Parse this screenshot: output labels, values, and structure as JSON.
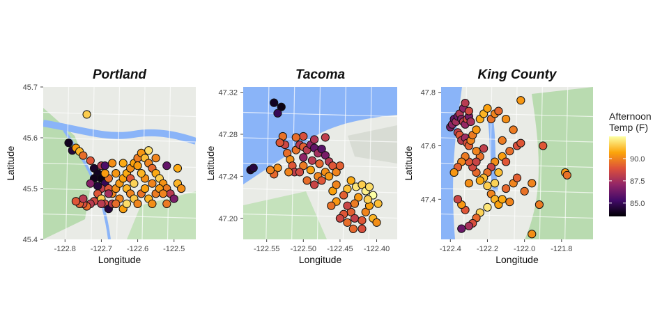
{
  "legend": {
    "title_line1": "Afternoon",
    "title_line2": "Temp (F)",
    "ticks": [
      90.0,
      87.5,
      85.0
    ],
    "tick_labels": [
      "90.0",
      "87.5",
      "85.0"
    ],
    "range": [
      83.5,
      92.5
    ],
    "colormap": [
      "#000004",
      "#420a68",
      "#932667",
      "#dd513a",
      "#fca50a",
      "#fcffa4"
    ]
  },
  "chart_data": [
    {
      "type": "scatter",
      "title": "Portland",
      "xlabel": "Longitude",
      "ylabel": "Latitude",
      "xlim": [
        -122.86,
        -122.44
      ],
      "ylim": [
        45.4,
        45.7
      ],
      "xticks": [
        -122.8,
        -122.7,
        -122.6,
        -122.5
      ],
      "xtick_labels": [
        "-122.8",
        "-122.7",
        "-122.6",
        "-122.5"
      ],
      "yticks": [
        45.4,
        45.5,
        45.6,
        45.7
      ],
      "ytick_labels": [
        "45.4",
        "45.5",
        "45.6",
        "45.7"
      ],
      "color_variable": "Afternoon Temp (F)",
      "points": [
        [
          -122.79,
          45.59,
          84.0
        ],
        [
          -122.78,
          45.575,
          84.5
        ],
        [
          -122.77,
          45.58,
          90.5
        ],
        [
          -122.76,
          45.573,
          91.0
        ],
        [
          -122.75,
          45.565,
          89.5
        ],
        [
          -122.74,
          45.646,
          91.5
        ],
        [
          -122.73,
          45.555,
          89.0
        ],
        [
          -122.72,
          45.54,
          84.2
        ],
        [
          -122.71,
          45.53,
          84.0
        ],
        [
          -122.7,
          45.52,
          83.8
        ],
        [
          -122.69,
          45.51,
          85.0
        ],
        [
          -122.7,
          45.5,
          88.2
        ],
        [
          -122.71,
          45.49,
          89.0
        ],
        [
          -122.72,
          45.475,
          88.5
        ],
        [
          -122.73,
          45.47,
          88.0
        ],
        [
          -122.74,
          45.465,
          89.5
        ],
        [
          -122.75,
          45.47,
          88.8
        ],
        [
          -122.76,
          45.47,
          89.2
        ],
        [
          -122.7,
          45.48,
          91.5
        ],
        [
          -122.69,
          45.47,
          88.6
        ],
        [
          -122.68,
          45.46,
          84.5
        ],
        [
          -122.67,
          45.47,
          88.0
        ],
        [
          -122.67,
          45.49,
          90.0
        ],
        [
          -122.68,
          45.5,
          89.0
        ],
        [
          -122.68,
          45.52,
          89.6
        ],
        [
          -122.69,
          45.53,
          90.5
        ],
        [
          -122.7,
          45.545,
          88.0
        ],
        [
          -122.66,
          45.5,
          90.2
        ],
        [
          -122.65,
          45.51,
          90.4
        ],
        [
          -122.64,
          45.52,
          90.6
        ],
        [
          -122.63,
          45.53,
          90.8
        ],
        [
          -122.62,
          45.54,
          90.2
        ],
        [
          -122.61,
          45.55,
          90.6
        ],
        [
          -122.6,
          45.56,
          89.8
        ],
        [
          -122.59,
          45.57,
          90.4
        ],
        [
          -122.58,
          45.56,
          91.2
        ],
        [
          -122.57,
          45.55,
          90.0
        ],
        [
          -122.56,
          45.54,
          89.4
        ],
        [
          -122.55,
          45.53,
          90.8
        ],
        [
          -122.54,
          45.52,
          91.5
        ],
        [
          -122.53,
          45.51,
          90.3
        ],
        [
          -122.52,
          45.5,
          89.8
        ],
        [
          -122.51,
          45.49,
          88.0
        ],
        [
          -122.5,
          45.48,
          86.5
        ],
        [
          -122.49,
          45.51,
          91.0
        ],
        [
          -122.48,
          45.5,
          90.2
        ],
        [
          -122.49,
          45.54,
          90.8
        ],
        [
          -122.55,
          45.56,
          90.0
        ],
        [
          -122.57,
          45.575,
          91.8
        ],
        [
          -122.6,
          45.545,
          90.5
        ],
        [
          -122.63,
          45.5,
          91.0
        ],
        [
          -122.62,
          45.49,
          90.0
        ],
        [
          -122.61,
          45.48,
          91.4
        ],
        [
          -122.6,
          45.47,
          90.0
        ],
        [
          -122.59,
          45.49,
          89.6
        ],
        [
          -122.58,
          45.5,
          90.6
        ],
        [
          -122.57,
          45.48,
          91.0
        ],
        [
          -122.56,
          45.47,
          90.2
        ],
        [
          -122.55,
          45.49,
          89.8
        ],
        [
          -122.54,
          45.5,
          90.4
        ],
        [
          -122.53,
          45.49,
          90.0
        ],
        [
          -122.52,
          45.47,
          89.8
        ],
        [
          -122.64,
          45.46,
          90.6
        ],
        [
          -122.65,
          45.48,
          90.0
        ],
        [
          -122.66,
          45.53,
          90.4
        ],
        [
          -122.62,
          45.52,
          89.0
        ],
        [
          -122.58,
          45.52,
          90.2
        ],
        [
          -122.61,
          45.51,
          91.6
        ],
        [
          -122.56,
          45.51,
          90.0
        ],
        [
          -122.64,
          45.55,
          90.8
        ],
        [
          -122.67,
          45.55,
          90.2
        ],
        [
          -122.52,
          45.545,
          86.0
        ],
        [
          -122.71,
          45.505,
          84.5
        ],
        [
          -122.72,
          45.52,
          83.9
        ],
        [
          -122.73,
          45.51,
          86.8
        ],
        [
          -122.69,
          45.545,
          85.5
        ],
        [
          -122.75,
          45.48,
          88.0
        ],
        [
          -122.66,
          45.47,
          89.5
        ],
        [
          -122.63,
          45.47,
          91.8
        ],
        [
          -122.59,
          45.53,
          91.0
        ],
        [
          -122.68,
          45.49,
          87.5
        ],
        [
          -122.7,
          45.47,
          88.0
        ],
        [
          -122.77,
          45.475,
          89.0
        ]
      ]
    },
    {
      "type": "scatter",
      "title": "Tacoma",
      "xlabel": "Longitude",
      "ylabel": "Latitude",
      "xlim": [
        -122.582,
        -122.372
      ],
      "ylim": [
        47.18,
        47.325
      ],
      "xticks": [
        -122.55,
        -122.5,
        -122.45,
        -122.4
      ],
      "xtick_labels": [
        "-122.55",
        "-122.50",
        "-122.45",
        "-122.40"
      ],
      "yticks": [
        47.2,
        47.24,
        47.28,
        47.32
      ],
      "ytick_labels": [
        "47.20",
        "47.24",
        "47.28",
        "47.32"
      ],
      "color_variable": "Afternoon Temp (F)",
      "points": [
        [
          -122.54,
          47.31,
          84.0
        ],
        [
          -122.53,
          47.306,
          83.8
        ],
        [
          -122.535,
          47.3,
          85.0
        ],
        [
          -122.572,
          47.246,
          84.2
        ],
        [
          -122.568,
          47.248,
          84.6
        ],
        [
          -122.525,
          47.27,
          88.5
        ],
        [
          -122.522,
          47.262,
          89.5
        ],
        [
          -122.518,
          47.256,
          90.2
        ],
        [
          -122.515,
          47.25,
          89.0
        ],
        [
          -122.512,
          47.244,
          88.2
        ],
        [
          -122.51,
          47.265,
          89.6
        ],
        [
          -122.505,
          47.27,
          88.0
        ],
        [
          -122.5,
          47.268,
          89.2
        ],
        [
          -122.495,
          47.265,
          88.0
        ],
        [
          -122.49,
          47.27,
          87.0
        ],
        [
          -122.485,
          47.267,
          86.0
        ],
        [
          -122.48,
          47.262,
          87.5
        ],
        [
          -122.475,
          47.266,
          85.8
        ],
        [
          -122.47,
          47.26,
          86.5
        ],
        [
          -122.465,
          47.254,
          88.0
        ],
        [
          -122.46,
          47.25,
          89.0
        ],
        [
          -122.47,
          47.244,
          90.2
        ],
        [
          -122.48,
          47.24,
          90.0
        ],
        [
          -122.49,
          47.246,
          90.6
        ],
        [
          -122.5,
          47.25,
          89.8
        ],
        [
          -122.505,
          47.244,
          88.6
        ],
        [
          -122.495,
          47.236,
          89.5
        ],
        [
          -122.485,
          47.232,
          88.4
        ],
        [
          -122.475,
          47.236,
          89.0
        ],
        [
          -122.465,
          47.24,
          90.4
        ],
        [
          -122.455,
          47.244,
          90.0
        ],
        [
          -122.45,
          47.25,
          89.2
        ],
        [
          -122.52,
          47.244,
          90.0
        ],
        [
          -122.535,
          47.248,
          90.2
        ],
        [
          -122.54,
          47.242,
          89.4
        ],
        [
          -122.545,
          47.246,
          90.0
        ],
        [
          -122.528,
          47.278,
          89.6
        ],
        [
          -122.532,
          47.272,
          89.0
        ],
        [
          -122.5,
          47.258,
          87.0
        ],
        [
          -122.488,
          47.255,
          88.0
        ],
        [
          -122.478,
          47.252,
          89.4
        ],
        [
          -122.46,
          47.226,
          90.6
        ],
        [
          -122.455,
          47.232,
          90.0
        ],
        [
          -122.44,
          47.228,
          91.2
        ],
        [
          -122.435,
          47.236,
          90.8
        ],
        [
          -122.428,
          47.23,
          92.0
        ],
        [
          -122.42,
          47.232,
          91.5
        ],
        [
          -122.415,
          47.226,
          92.2
        ],
        [
          -122.41,
          47.23,
          91.8
        ],
        [
          -122.405,
          47.222,
          92.5
        ],
        [
          -122.425,
          47.22,
          90.4
        ],
        [
          -122.43,
          47.214,
          89.8
        ],
        [
          -122.435,
          47.206,
          89.2
        ],
        [
          -122.44,
          47.212,
          88.4
        ],
        [
          -122.445,
          47.204,
          89.0
        ],
        [
          -122.45,
          47.2,
          88.5
        ],
        [
          -122.44,
          47.196,
          89.5
        ],
        [
          -122.43,
          47.2,
          88.2
        ],
        [
          -122.42,
          47.198,
          89.0
        ],
        [
          -122.415,
          47.206,
          90.0
        ],
        [
          -122.41,
          47.212,
          90.6
        ],
        [
          -122.405,
          47.2,
          91.0
        ],
        [
          -122.4,
          47.196,
          90.2
        ],
        [
          -122.42,
          47.19,
          88.8
        ],
        [
          -122.432,
          47.19,
          89.4
        ],
        [
          -122.445,
          47.222,
          89.2
        ],
        [
          -122.455,
          47.216,
          90.4
        ],
        [
          -122.462,
          47.212,
          89.6
        ],
        [
          -122.412,
          47.218,
          91.6
        ],
        [
          -122.398,
          47.214,
          91.2
        ],
        [
          -122.5,
          47.278,
          88.8
        ],
        [
          -122.51,
          47.277,
          89.5
        ],
        [
          -122.47,
          47.277,
          88.2
        ],
        [
          -122.485,
          47.275,
          87.8
        ]
      ]
    },
    {
      "type": "scatter",
      "title": "King County",
      "xlabel": "Longitude",
      "ylabel": "Latitude",
      "xlim": [
        -122.45,
        -121.63
      ],
      "ylim": [
        47.25,
        47.82
      ],
      "xticks": [
        -122.4,
        -122.2,
        -122.0,
        -121.8
      ],
      "xtick_labels": [
        "-122.4",
        "-122.2",
        "-122.0",
        "-121.8"
      ],
      "yticks": [
        47.4,
        47.6,
        47.8
      ],
      "ytick_labels": [
        "47.4",
        "47.6",
        "47.8"
      ],
      "color_variable": "Afternoon Temp (F)",
      "points": [
        [
          -122.4,
          47.67,
          86.5
        ],
        [
          -122.39,
          47.68,
          87.0
        ],
        [
          -122.38,
          47.7,
          86.0
        ],
        [
          -122.37,
          47.69,
          87.5
        ],
        [
          -122.36,
          47.71,
          86.2
        ],
        [
          -122.35,
          47.72,
          87.8
        ],
        [
          -122.34,
          47.7,
          86.8
        ],
        [
          -122.33,
          47.69,
          88.0
        ],
        [
          -122.32,
          47.68,
          87.2
        ],
        [
          -122.31,
          47.7,
          88.5
        ],
        [
          -122.3,
          47.71,
          86.5
        ],
        [
          -122.29,
          47.69,
          87.6
        ],
        [
          -122.33,
          47.74,
          87.0
        ],
        [
          -122.32,
          47.76,
          88.0
        ],
        [
          -122.3,
          47.73,
          88.6
        ],
        [
          -122.36,
          47.65,
          88.2
        ],
        [
          -122.35,
          47.64,
          89.0
        ],
        [
          -122.34,
          47.62,
          88.0
        ],
        [
          -122.32,
          47.63,
          87.4
        ],
        [
          -122.31,
          47.61,
          88.8
        ],
        [
          -122.3,
          47.6,
          89.2
        ],
        [
          -122.29,
          47.62,
          90.0
        ],
        [
          -122.28,
          47.64,
          89.8
        ],
        [
          -122.26,
          47.66,
          90.4
        ],
        [
          -122.24,
          47.7,
          90.8
        ],
        [
          -122.22,
          47.72,
          91.0
        ],
        [
          -122.2,
          47.74,
          90.6
        ],
        [
          -122.18,
          47.7,
          89.6
        ],
        [
          -122.16,
          47.72,
          90.0
        ],
        [
          -122.14,
          47.73,
          89.4
        ],
        [
          -122.1,
          47.7,
          90.2
        ],
        [
          -122.06,
          47.66,
          89.8
        ],
        [
          -122.04,
          47.6,
          88.8
        ],
        [
          -122.02,
          47.61,
          89.0
        ],
        [
          -122.08,
          47.58,
          89.5
        ],
        [
          -122.12,
          47.56,
          90.5
        ],
        [
          -122.16,
          47.54,
          90.2
        ],
        [
          -122.18,
          47.52,
          88.4
        ],
        [
          -122.2,
          47.5,
          89.6
        ],
        [
          -122.22,
          47.48,
          91.2
        ],
        [
          -122.24,
          47.47,
          90.8
        ],
        [
          -122.26,
          47.5,
          89.4
        ],
        [
          -122.28,
          47.52,
          88.6
        ],
        [
          -122.3,
          47.54,
          89.0
        ],
        [
          -122.32,
          47.56,
          89.8
        ],
        [
          -122.34,
          47.54,
          90.0
        ],
        [
          -122.36,
          47.52,
          89.2
        ],
        [
          -122.38,
          47.5,
          90.4
        ],
        [
          -122.2,
          47.45,
          91.5
        ],
        [
          -122.18,
          47.42,
          90.0
        ],
        [
          -122.16,
          47.4,
          91.0
        ],
        [
          -122.14,
          47.38,
          90.6
        ],
        [
          -122.2,
          47.37,
          92.0
        ],
        [
          -122.24,
          47.35,
          91.6
        ],
        [
          -122.26,
          47.33,
          89.4
        ],
        [
          -122.28,
          47.31,
          88.8
        ],
        [
          -122.3,
          47.3,
          87.6
        ],
        [
          -122.34,
          47.29,
          86.2
        ],
        [
          -122.32,
          47.36,
          89.0
        ],
        [
          -122.34,
          47.38,
          90.4
        ],
        [
          -122.36,
          47.4,
          88.4
        ],
        [
          -122.1,
          47.44,
          89.4
        ],
        [
          -122.06,
          47.46,
          90.0
        ],
        [
          -122.04,
          47.48,
          89.2
        ],
        [
          -122.0,
          47.43,
          89.6
        ],
        [
          -121.96,
          47.46,
          90.0
        ],
        [
          -121.92,
          47.38,
          89.8
        ],
        [
          -121.96,
          47.27,
          90.2
        ],
        [
          -121.9,
          47.6,
          89.0
        ],
        [
          -121.78,
          47.5,
          90.4
        ],
        [
          -121.77,
          47.49,
          89.6
        ],
        [
          -122.12,
          47.62,
          89.8
        ],
        [
          -122.1,
          47.54,
          89.0
        ],
        [
          -122.14,
          47.5,
          91.2
        ],
        [
          -122.22,
          47.59,
          88.2
        ],
        [
          -122.24,
          47.56,
          89.6
        ],
        [
          -122.26,
          47.58,
          90.0
        ],
        [
          -122.02,
          47.77,
          90.4
        ],
        [
          -122.26,
          47.54,
          88.4
        ],
        [
          -122.3,
          47.46,
          90.2
        ],
        [
          -122.16,
          47.46,
          91.6
        ],
        [
          -122.12,
          47.4,
          90.8
        ],
        [
          -122.08,
          47.39,
          90.0
        ]
      ]
    }
  ]
}
